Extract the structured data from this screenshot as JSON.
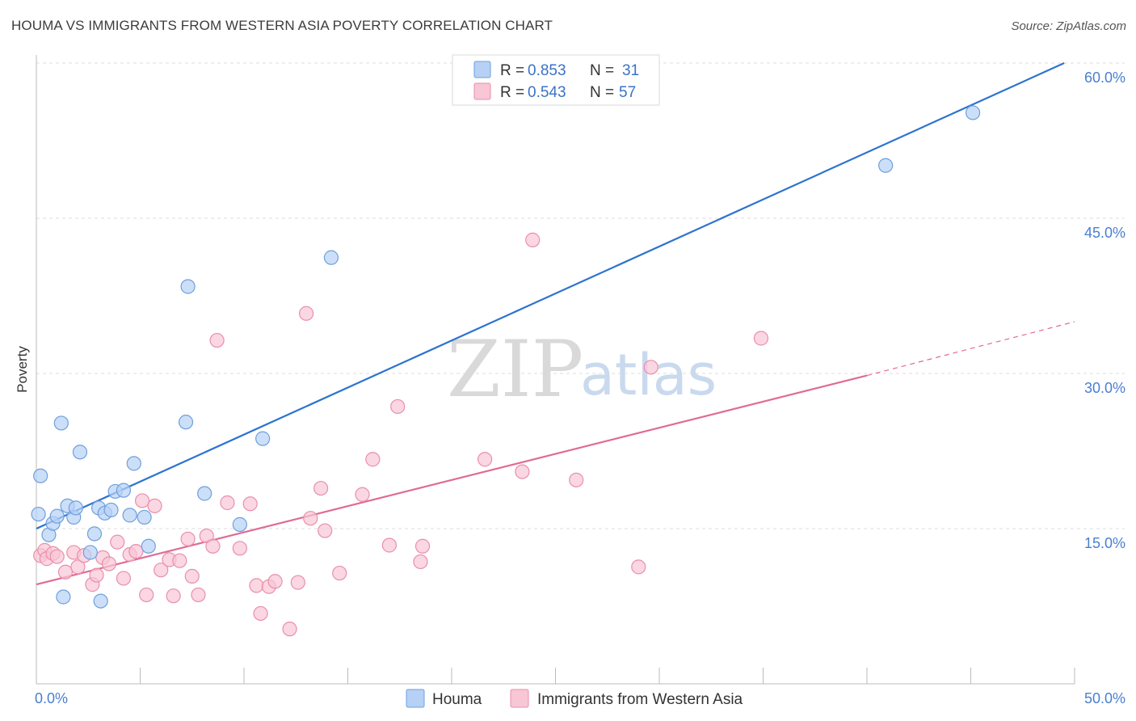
{
  "header": {
    "title": "HOUMA VS IMMIGRANTS FROM WESTERN ASIA POVERTY CORRELATION CHART",
    "source": "Source: ZipAtlas.com"
  },
  "colors": {
    "houma_fill": "#b6d1f5",
    "houma_stroke": "#6f9fdc",
    "houma_line": "#2d73d0",
    "wa_fill": "#f8c6d5",
    "wa_stroke": "#e98fab",
    "wa_line": "#e06b94",
    "grid": "#dcdcdc",
    "axis": "#bbbbbb"
  },
  "watermark": {
    "zip": "ZIP",
    "atlas": "atlas"
  },
  "legend": {
    "rows": [
      {
        "r_label": "R =",
        "r_value": "0.853",
        "n_label": "N =",
        "n_value": "31"
      },
      {
        "r_label": "R =",
        "r_value": "0.543",
        "n_label": "N =",
        "n_value": "57"
      }
    ]
  },
  "bottom_legend": {
    "houma": "Houma",
    "western_asia": "Immigrants from Western Asia"
  },
  "chart_data": {
    "type": "scatter",
    "title": "HOUMA VS IMMIGRANTS FROM WESTERN ASIA POVERTY CORRELATION CHART",
    "xlabel": "",
    "ylabel": "Poverty",
    "xlim": [
      0,
      50
    ],
    "ylim": [
      0,
      60
    ],
    "x_tick_labels": [
      "0.0%",
      "50.0%"
    ],
    "y_ticks": [
      15,
      30,
      45,
      60
    ],
    "y_tick_labels": [
      "15.0%",
      "30.0%",
      "45.0%",
      "60.0%"
    ],
    "grid": true,
    "series": [
      {
        "name": "Houma",
        "r": 0.853,
        "n": 31,
        "points": [
          [
            0.1,
            16.4
          ],
          [
            0.2,
            20.1
          ],
          [
            0.6,
            14.4
          ],
          [
            0.8,
            15.5
          ],
          [
            1.0,
            16.2
          ],
          [
            1.2,
            25.2
          ],
          [
            1.3,
            8.4
          ],
          [
            1.5,
            17.2
          ],
          [
            1.8,
            16.1
          ],
          [
            1.9,
            17.0
          ],
          [
            2.1,
            22.4
          ],
          [
            2.6,
            12.7
          ],
          [
            2.8,
            14.5
          ],
          [
            3.0,
            17.0
          ],
          [
            3.1,
            8.0
          ],
          [
            3.3,
            16.5
          ],
          [
            3.6,
            16.8
          ],
          [
            3.8,
            18.6
          ],
          [
            4.2,
            18.7
          ],
          [
            4.5,
            16.3
          ],
          [
            4.7,
            21.3
          ],
          [
            5.2,
            16.1
          ],
          [
            5.4,
            13.3
          ],
          [
            7.2,
            25.3
          ],
          [
            7.3,
            38.4
          ],
          [
            8.1,
            18.4
          ],
          [
            9.8,
            15.4
          ],
          [
            10.9,
            23.7
          ],
          [
            14.2,
            41.2
          ],
          [
            40.9,
            50.1
          ],
          [
            45.1,
            55.2
          ]
        ],
        "trend": {
          "x": [
            0,
            49.5
          ],
          "y": [
            15.0,
            60.0
          ]
        }
      },
      {
        "name": "Immigrants from Western Asia",
        "r": 0.543,
        "n": 57,
        "points": [
          [
            0.2,
            12.4
          ],
          [
            0.4,
            12.9
          ],
          [
            0.5,
            12.1
          ],
          [
            0.8,
            12.6
          ],
          [
            1.0,
            12.3
          ],
          [
            1.4,
            10.8
          ],
          [
            1.8,
            12.7
          ],
          [
            2.0,
            11.3
          ],
          [
            2.3,
            12.4
          ],
          [
            2.7,
            9.6
          ],
          [
            2.9,
            10.5
          ],
          [
            3.2,
            12.2
          ],
          [
            3.5,
            11.6
          ],
          [
            3.9,
            13.7
          ],
          [
            4.2,
            10.2
          ],
          [
            4.5,
            12.5
          ],
          [
            4.8,
            12.8
          ],
          [
            5.1,
            17.7
          ],
          [
            5.3,
            8.6
          ],
          [
            5.7,
            17.2
          ],
          [
            6.0,
            11.0
          ],
          [
            6.4,
            12.0
          ],
          [
            6.6,
            8.5
          ],
          [
            6.9,
            11.9
          ],
          [
            7.3,
            14.0
          ],
          [
            7.5,
            10.4
          ],
          [
            7.8,
            8.6
          ],
          [
            8.2,
            14.3
          ],
          [
            8.5,
            13.3
          ],
          [
            8.7,
            33.2
          ],
          [
            9.2,
            17.5
          ],
          [
            9.8,
            13.1
          ],
          [
            10.3,
            17.4
          ],
          [
            10.6,
            9.5
          ],
          [
            10.8,
            6.8
          ],
          [
            11.2,
            9.4
          ],
          [
            11.5,
            9.9
          ],
          [
            12.2,
            5.3
          ],
          [
            12.6,
            9.8
          ],
          [
            13.0,
            35.8
          ],
          [
            13.2,
            16.0
          ],
          [
            13.7,
            18.9
          ],
          [
            13.9,
            14.8
          ],
          [
            14.6,
            10.7
          ],
          [
            15.7,
            18.3
          ],
          [
            16.2,
            21.7
          ],
          [
            17.0,
            13.4
          ],
          [
            17.4,
            26.8
          ],
          [
            18.5,
            11.8
          ],
          [
            18.6,
            13.3
          ],
          [
            21.6,
            21.7
          ],
          [
            23.4,
            20.5
          ],
          [
            23.9,
            42.9
          ],
          [
            26.0,
            19.7
          ],
          [
            29.0,
            11.3
          ],
          [
            29.6,
            30.6
          ],
          [
            34.9,
            33.4
          ]
        ],
        "trend": {
          "x": [
            0,
            40
          ],
          "y": [
            9.6,
            29.8
          ]
        },
        "trend_extension": {
          "x": [
            40,
            50
          ],
          "y": [
            29.8,
            35.0
          ]
        }
      }
    ]
  }
}
